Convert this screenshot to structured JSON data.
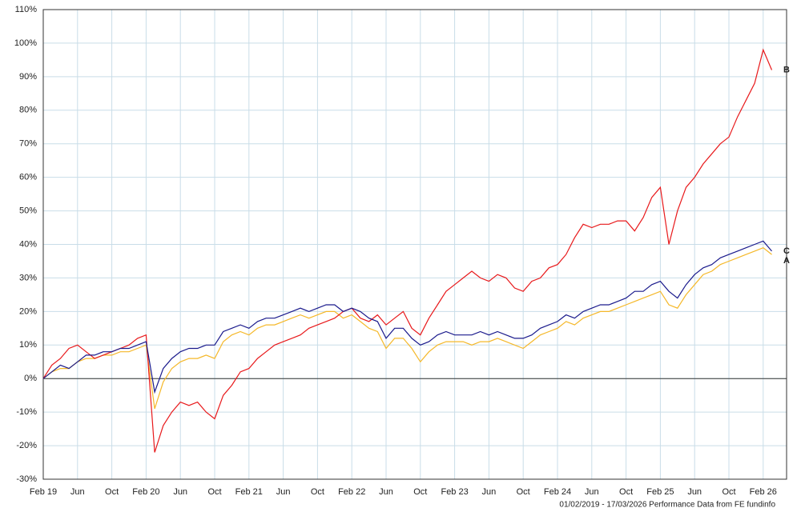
{
  "chart_data": {
    "type": "line",
    "categories": [
      "Feb 19",
      null,
      null,
      null,
      "Jun",
      null,
      null,
      null,
      "Oct",
      null,
      null,
      null,
      "Feb 20",
      null,
      null,
      null,
      "Jun",
      null,
      null,
      null,
      "Oct",
      null,
      null,
      null,
      "Feb 21",
      null,
      null,
      null,
      "Jun",
      null,
      null,
      null,
      "Oct",
      null,
      null,
      null,
      "Feb 22",
      null,
      null,
      null,
      "Jun",
      null,
      null,
      null,
      "Oct",
      null,
      null,
      null,
      "Feb 23",
      null,
      null,
      null,
      "Jun",
      null,
      null,
      null,
      "Oct",
      null,
      null,
      null,
      "Feb 24",
      null,
      null,
      null,
      "Jun",
      null,
      null,
      null,
      "Oct",
      null,
      null,
      null,
      "Feb 25",
      null,
      null,
      null,
      "Jun",
      null,
      null,
      null,
      "Oct",
      null,
      null,
      null,
      "Feb 26",
      null
    ],
    "series": [
      {
        "name": "A",
        "color": "#f5b829",
        "values": [
          0,
          2,
          3,
          3,
          5,
          6,
          6,
          7,
          7,
          8,
          8,
          9,
          10,
          -9,
          -1,
          3,
          5,
          6,
          6,
          7,
          6,
          11,
          13,
          14,
          13,
          15,
          16,
          16,
          17,
          18,
          19,
          18,
          19,
          20,
          20,
          18,
          19,
          17,
          15,
          14,
          9,
          12,
          12,
          9,
          5,
          8,
          10,
          11,
          11,
          11,
          10,
          11,
          11,
          12,
          11,
          10,
          9,
          11,
          13,
          14,
          15,
          17,
          16,
          18,
          19,
          20,
          20,
          21,
          22,
          23,
          24,
          25,
          26,
          22,
          21,
          25,
          28,
          31,
          32,
          34,
          35,
          36,
          37,
          38,
          39,
          37
        ]
      },
      {
        "name": "B",
        "color": "#e8191b",
        "values": [
          0,
          4,
          6,
          9,
          10,
          8,
          6,
          7,
          8,
          9,
          10,
          12,
          13,
          -22,
          -14,
          -10,
          -7,
          -8,
          -7,
          -10,
          -12,
          -5,
          -2,
          2,
          3,
          6,
          8,
          10,
          11,
          12,
          13,
          15,
          16,
          17,
          18,
          20,
          21,
          18,
          17,
          19,
          16,
          18,
          20,
          15,
          13,
          18,
          22,
          26,
          28,
          30,
          32,
          30,
          29,
          31,
          30,
          27,
          26,
          29,
          30,
          33,
          34,
          37,
          42,
          46,
          45,
          46,
          46,
          47,
          47,
          44,
          48,
          54,
          57,
          40,
          50,
          57,
          60,
          64,
          67,
          70,
          72,
          78,
          83,
          88,
          98,
          92
        ]
      },
      {
        "name": "C",
        "color": "#1a1a8c",
        "values": [
          0,
          2,
          4,
          3,
          5,
          7,
          7,
          8,
          8,
          9,
          9,
          10,
          11,
          -4,
          3,
          6,
          8,
          9,
          9,
          10,
          10,
          14,
          15,
          16,
          15,
          17,
          18,
          18,
          19,
          20,
          21,
          20,
          21,
          22,
          22,
          20,
          21,
          20,
          18,
          17,
          12,
          15,
          15,
          12,
          10,
          11,
          13,
          14,
          13,
          13,
          13,
          14,
          13,
          14,
          13,
          12,
          12,
          13,
          15,
          16,
          17,
          19,
          18,
          20,
          21,
          22,
          22,
          23,
          24,
          26,
          26,
          28,
          29,
          26,
          24,
          28,
          31,
          33,
          34,
          36,
          37,
          38,
          39,
          40,
          41,
          38
        ]
      }
    ],
    "ylim": [
      -30,
      110
    ],
    "yticks": [
      {
        "value": -30,
        "label": "-30%"
      },
      {
        "value": -20,
        "label": "-20%"
      },
      {
        "value": -10,
        "label": "-10%"
      },
      {
        "value": 0,
        "label": "0%"
      },
      {
        "value": 10,
        "label": "10%"
      },
      {
        "value": 20,
        "label": "20%"
      },
      {
        "value": 30,
        "label": "30%"
      },
      {
        "value": 40,
        "label": "40%"
      },
      {
        "value": 50,
        "label": "50%"
      },
      {
        "value": 60,
        "label": "60%"
      },
      {
        "value": 70,
        "label": "70%"
      },
      {
        "value": 80,
        "label": "80%"
      },
      {
        "value": 90,
        "label": "90%"
      },
      {
        "value": 100,
        "label": "100%"
      },
      {
        "value": 110,
        "label": "110%"
      }
    ],
    "grid": true,
    "footnote": "01/02/2019 - 17/03/2026 Performance Data from FE fundinfo"
  }
}
